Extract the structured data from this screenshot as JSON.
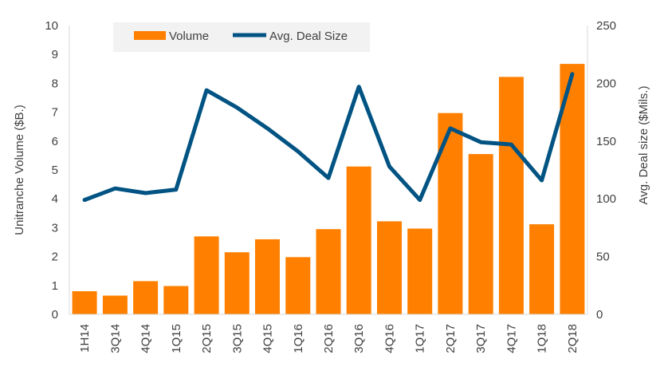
{
  "chart_data": {
    "type": "bar",
    "categories": [
      "1H14",
      "3Q14",
      "4Q14",
      "1Q15",
      "2Q15",
      "3Q15",
      "4Q15",
      "1Q16",
      "2Q16",
      "3Q16",
      "4Q16",
      "1Q17",
      "2Q17",
      "3Q17",
      "4Q17",
      "1Q18",
      "2Q18"
    ],
    "series": [
      {
        "name": "Volume",
        "type": "bar",
        "axis": "left",
        "color": "#ff8000",
        "values": [
          0.8,
          0.65,
          1.15,
          0.98,
          2.7,
          2.15,
          2.6,
          1.98,
          2.95,
          5.12,
          3.22,
          2.97,
          6.97,
          5.55,
          8.22,
          3.12,
          8.67
        ]
      },
      {
        "name": "Avg. Deal Size",
        "type": "line",
        "axis": "right",
        "color": "#005382",
        "values": [
          99,
          109,
          105,
          108,
          194,
          179,
          161,
          141,
          118,
          197,
          128,
          99,
          161,
          149,
          147,
          116,
          208
        ]
      }
    ],
    "ylabel": "Unitranche Volume ($B.)",
    "y2label": "Avg. Deal size ($Mils.)",
    "ylim": [
      0,
      10
    ],
    "y2lim": [
      0,
      250
    ],
    "yticks": [
      "0",
      "1",
      "2",
      "3",
      "4",
      "5",
      "6",
      "7",
      "8",
      "9",
      "10"
    ],
    "y2ticks": [
      "0",
      "50",
      "100",
      "150",
      "200",
      "250"
    ],
    "grid": false,
    "legend": "top-left"
  }
}
